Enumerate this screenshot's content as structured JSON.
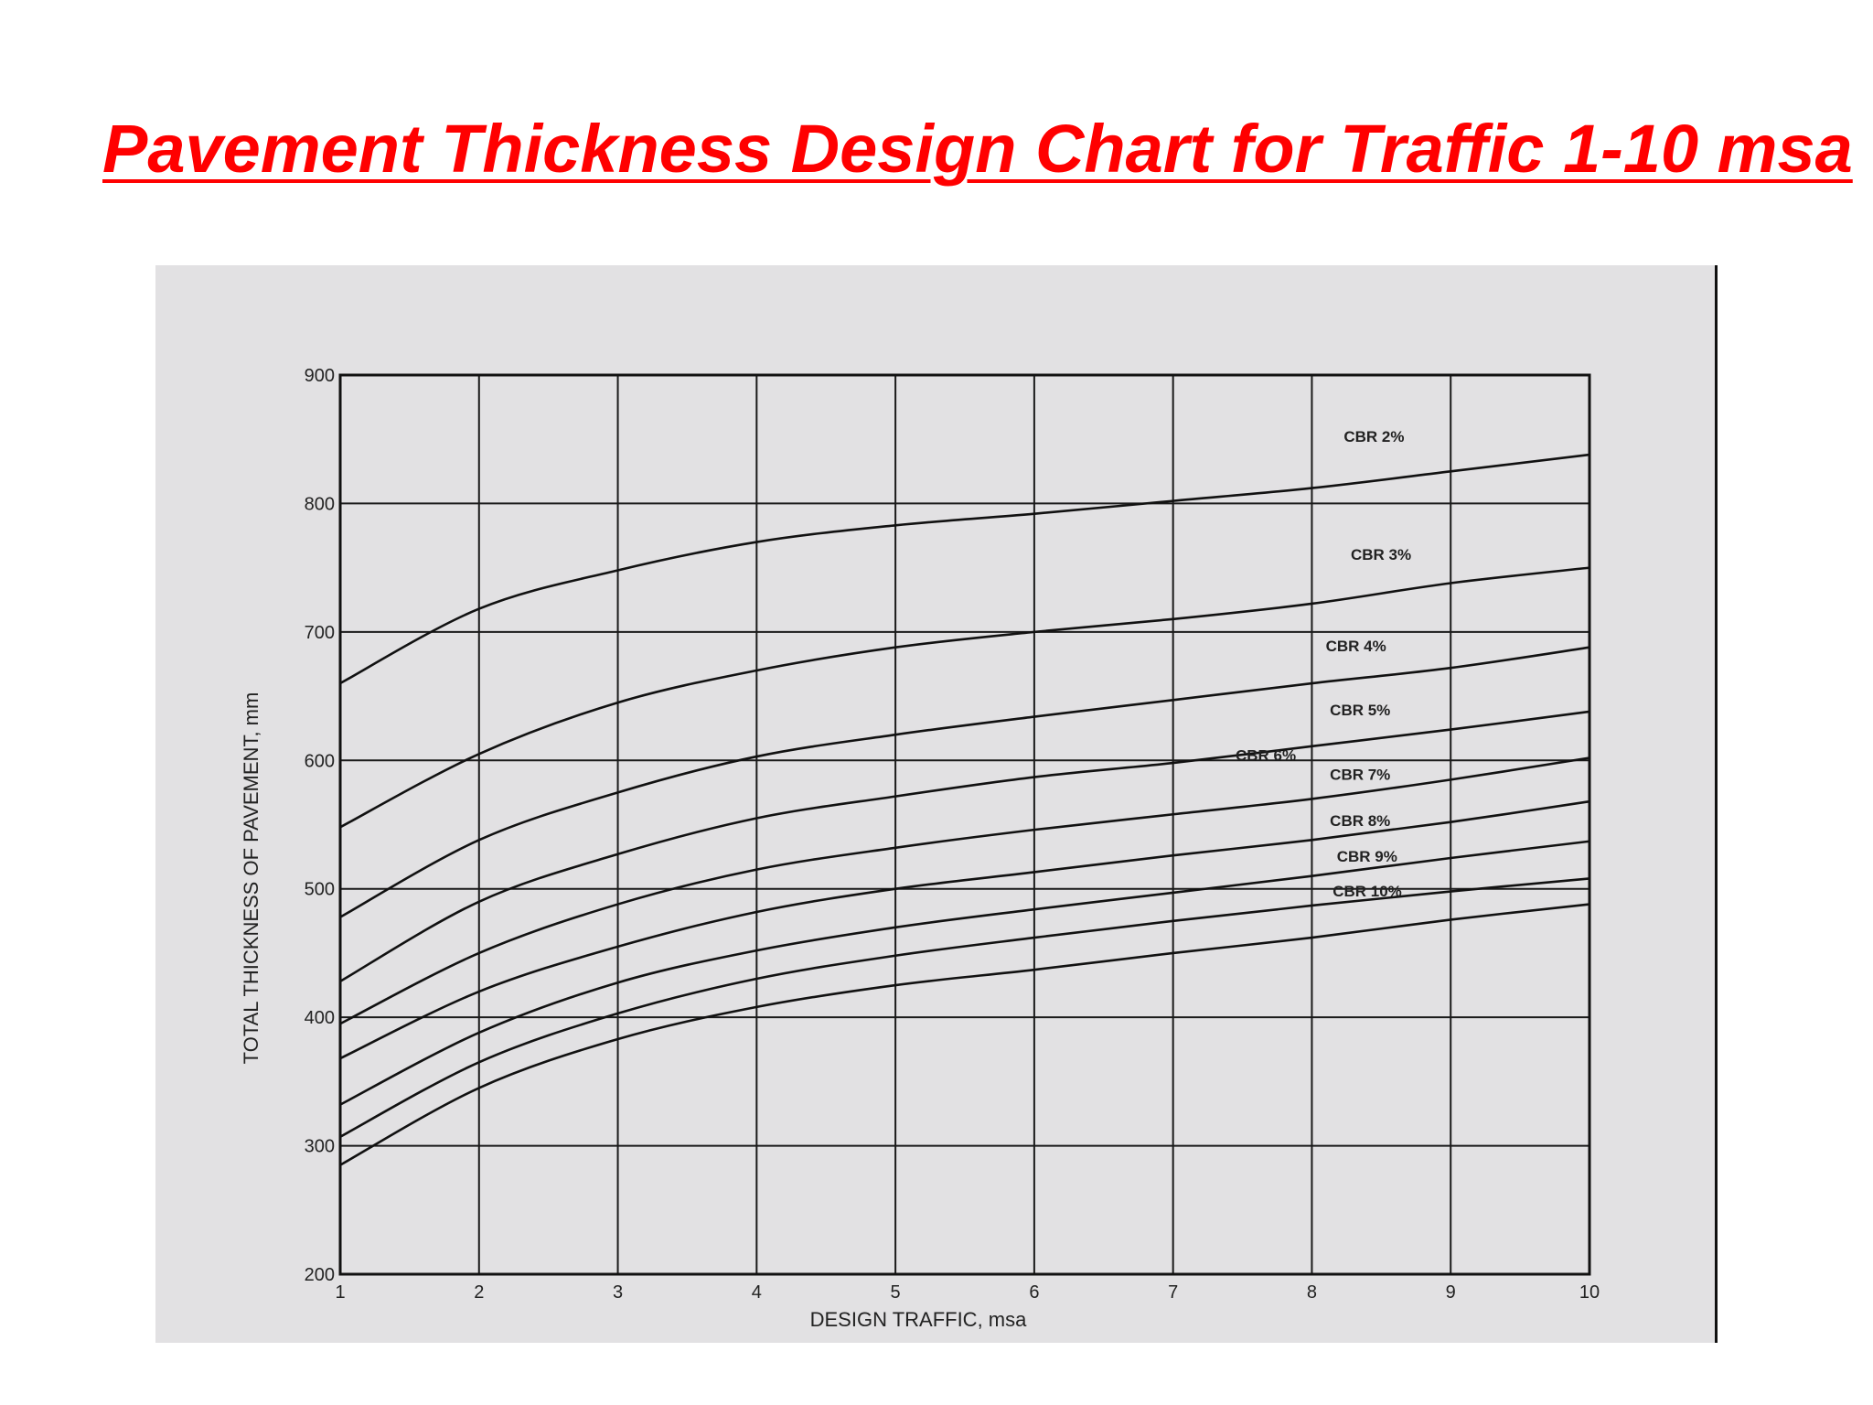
{
  "page": {
    "title": "Pavement Thickness Design Chart for Traffic 1-10 msa",
    "title_color": "#ff0000",
    "panel_color": "#e2e1e3"
  },
  "chart_data": {
    "type": "line",
    "xlabel": "DESIGN TRAFFIC, msa",
    "ylabel": "TOTAL THICKNESS OF PAVEMENT, mm",
    "xlim": [
      1,
      10
    ],
    "ylim": [
      200,
      900
    ],
    "x_ticks": [
      1,
      2,
      3,
      4,
      5,
      6,
      7,
      8,
      9,
      10
    ],
    "y_ticks": [
      200,
      300,
      400,
      500,
      600,
      700,
      800,
      900
    ],
    "grid": true,
    "x": [
      1,
      2,
      3,
      4,
      5,
      6,
      7,
      8,
      9,
      10
    ],
    "series": [
      {
        "name": "CBR 2%",
        "values": [
          660,
          718,
          748,
          770,
          783,
          792,
          802,
          812,
          825,
          838
        ]
      },
      {
        "name": "CBR 3%",
        "values": [
          548,
          605,
          645,
          670,
          688,
          700,
          710,
          722,
          738,
          750
        ]
      },
      {
        "name": "CBR 4%",
        "values": [
          478,
          538,
          575,
          603,
          620,
          634,
          647,
          660,
          672,
          688
        ]
      },
      {
        "name": "CBR 5%",
        "values": [
          428,
          490,
          527,
          555,
          572,
          587,
          598,
          611,
          624,
          638
        ]
      },
      {
        "name": "CBR 6%",
        "values": [
          395,
          450,
          488,
          515,
          532,
          546,
          558,
          570,
          585,
          602
        ]
      },
      {
        "name": "CBR 7%",
        "values": [
          368,
          420,
          455,
          482,
          500,
          513,
          526,
          538,
          552,
          568
        ]
      },
      {
        "name": "CBR 8%",
        "values": [
          332,
          388,
          427,
          452,
          470,
          484,
          497,
          510,
          524,
          537
        ]
      },
      {
        "name": "CBR 9%",
        "values": [
          307,
          365,
          403,
          430,
          448,
          462,
          475,
          487,
          498,
          508
        ]
      },
      {
        "name": "CBR 10%",
        "values": [
          285,
          345,
          383,
          408,
          425,
          437,
          450,
          462,
          476,
          488
        ]
      }
    ]
  }
}
